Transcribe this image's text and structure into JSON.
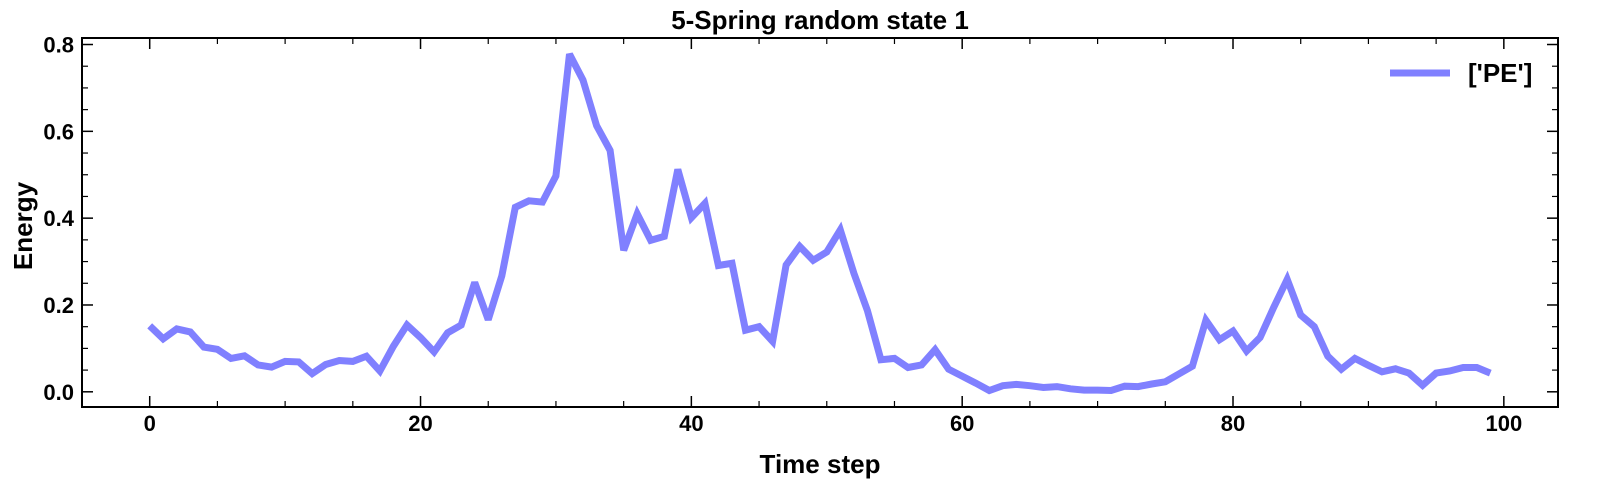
{
  "chart_data": {
    "type": "line",
    "title": "5-Spring random state 1",
    "xlabel": "Time step",
    "ylabel": "Energy",
    "xlim": [
      -5,
      104
    ],
    "ylim": [
      -0.035,
      0.815
    ],
    "xticks": [
      0,
      20,
      40,
      60,
      80,
      100
    ],
    "yticks": [
      0.0,
      0.2,
      0.4,
      0.6,
      0.8
    ],
    "xticks_labels": [
      "0",
      "20",
      "40",
      "60",
      "80",
      "100"
    ],
    "yticks_labels": [
      "0.0",
      "0.2",
      "0.4",
      "0.6",
      "0.8"
    ],
    "x_minor_step": 5,
    "y_minor_step": 0.05,
    "grid": false,
    "legend_position": "top-right",
    "series": [
      {
        "name": "['PE']",
        "color": "#8080ff",
        "x": [
          0,
          1,
          2,
          3,
          4,
          5,
          6,
          7,
          8,
          9,
          10,
          11,
          12,
          13,
          14,
          15,
          16,
          17,
          18,
          19,
          20,
          21,
          22,
          23,
          24,
          25,
          26,
          27,
          28,
          29,
          30,
          31,
          32,
          33,
          34,
          35,
          36,
          37,
          38,
          39,
          40,
          41,
          42,
          43,
          44,
          45,
          46,
          47,
          48,
          49,
          50,
          51,
          52,
          53,
          54,
          55,
          56,
          57,
          58,
          59,
          60,
          61,
          62,
          63,
          64,
          65,
          66,
          67,
          68,
          69,
          70,
          71,
          72,
          73,
          74,
          75,
          76,
          77,
          78,
          79,
          80,
          81,
          82,
          83,
          84,
          85,
          86,
          87,
          88,
          89,
          90,
          91,
          92,
          93,
          94,
          95,
          96,
          97,
          98,
          99
        ],
        "values": [
          0.152,
          0.122,
          0.145,
          0.138,
          0.103,
          0.098,
          0.077,
          0.083,
          0.062,
          0.057,
          0.07,
          0.069,
          0.042,
          0.063,
          0.072,
          0.07,
          0.082,
          0.048,
          0.105,
          0.154,
          0.125,
          0.092,
          0.136,
          0.154,
          0.252,
          0.166,
          0.267,
          0.425,
          0.44,
          0.437,
          0.497,
          0.778,
          0.718,
          0.613,
          0.556,
          0.326,
          0.41,
          0.349,
          0.358,
          0.512,
          0.401,
          0.434,
          0.291,
          0.296,
          0.142,
          0.15,
          0.116,
          0.292,
          0.335,
          0.303,
          0.322,
          0.373,
          0.273,
          0.187,
          0.074,
          0.077,
          0.056,
          0.062,
          0.097,
          0.052,
          0.036,
          0.02,
          0.003,
          0.014,
          0.017,
          0.014,
          0.01,
          0.012,
          0.007,
          0.004,
          0.004,
          0.003,
          0.013,
          0.012,
          0.018,
          0.023,
          0.041,
          0.059,
          0.165,
          0.12,
          0.14,
          0.094,
          0.125,
          0.194,
          0.259,
          0.177,
          0.15,
          0.082,
          0.052,
          0.077,
          0.061,
          0.046,
          0.053,
          0.043,
          0.015,
          0.043,
          0.048,
          0.056,
          0.056,
          0.043
        ]
      }
    ]
  }
}
